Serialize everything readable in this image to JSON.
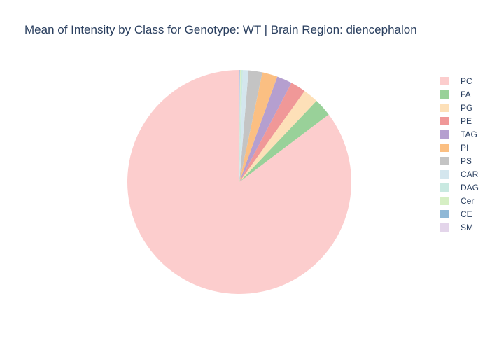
{
  "chart_data": {
    "type": "pie",
    "title": "Mean of Intensity by Class for Genotype: WT | Brain Region: diencephalon",
    "legend_position": "right",
    "start": "top",
    "direction": "clockwise",
    "slices": [
      {
        "label": "PC",
        "value": 85.3,
        "color": "#fccdcd"
      },
      {
        "label": "FA",
        "value": 2.6,
        "color": "#99d199"
      },
      {
        "label": "PG",
        "value": 2.2,
        "color": "#fde0b8"
      },
      {
        "label": "PE",
        "value": 2.2,
        "color": "#f09898"
      },
      {
        "label": "TAG",
        "value": 2.2,
        "color": "#b59fcf"
      },
      {
        "label": "PI",
        "value": 2.2,
        "color": "#fbbf82"
      },
      {
        "label": "PS",
        "value": 2.0,
        "color": "#c4c4c4"
      },
      {
        "label": "CAR",
        "value": 0.8,
        "color": "#d4e6ee"
      },
      {
        "label": "DAG",
        "value": 0.3,
        "color": "#c9e9e1"
      },
      {
        "label": "Cer",
        "value": 0.1,
        "color": "#d6efc4"
      },
      {
        "label": "CE",
        "value": 0.05,
        "color": "#8fb8d6"
      },
      {
        "label": "SM",
        "value": 0.05,
        "color": "#e3d5ea"
      }
    ]
  }
}
